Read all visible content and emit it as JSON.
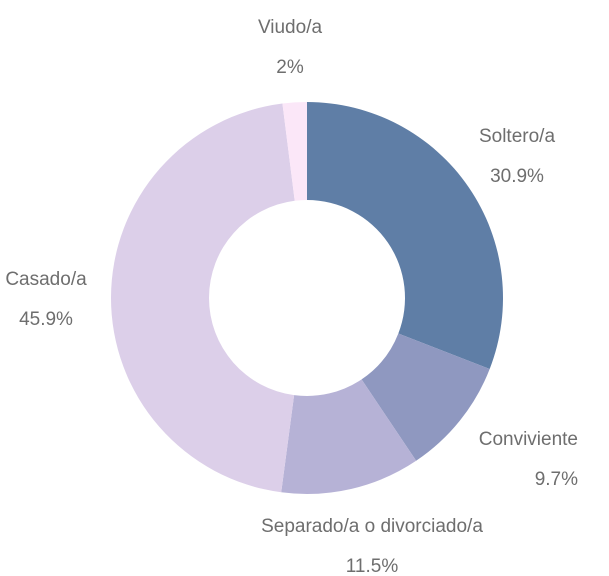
{
  "chart_data": {
    "type": "donut",
    "categories": [
      "Soltero/a",
      "Conviviente",
      "Separado/a o divorciado/a",
      "Casado/a",
      "Viudo/a"
    ],
    "values": [
      30.9,
      9.7,
      11.5,
      45.9,
      2
    ],
    "value_labels": [
      "30.9%",
      "9.7%",
      "11.5%",
      "45.9%",
      "2%"
    ],
    "colors": [
      "#5f7ea6",
      "#8f98c0",
      "#b6b2d6",
      "#dccfe9",
      "#fbe7f8"
    ]
  }
}
